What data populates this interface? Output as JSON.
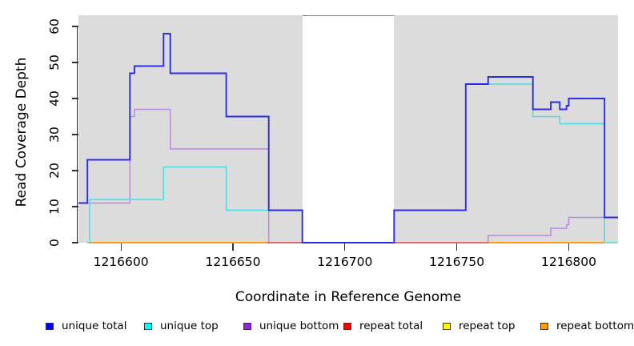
{
  "figure": {
    "x_axis": {
      "title": "Coordinate in Reference Genome",
      "tick_labels": [
        "1216600",
        "1216650",
        "1216700",
        "1216750",
        "1216800"
      ],
      "tick_values": [
        1216600,
        1216650,
        1216700,
        1216750,
        1216800
      ]
    },
    "y_axis": {
      "title": "Read Coverage Depth",
      "tick_labels": [
        "0",
        "10",
        "20",
        "30",
        "40",
        "50",
        "60"
      ],
      "tick_values": [
        0,
        10,
        20,
        30,
        40,
        50,
        60
      ]
    },
    "legend": [
      {
        "label": "unique total",
        "color": "#0000ff"
      },
      {
        "label": "unique top",
        "color": "#00ffff"
      },
      {
        "label": "unique bottom",
        "color": "#9327d8"
      },
      {
        "label": "repeat total",
        "color": "#ff0000"
      },
      {
        "label": "repeat top",
        "color": "#ffff00"
      },
      {
        "label": "repeat bottom",
        "color": "#ffa200"
      }
    ]
  },
  "chart_data": {
    "type": "line",
    "subtype": "step-coverage",
    "title": "",
    "xlabel": "Coordinate in Reference Genome",
    "ylabel": "Read Coverage Depth",
    "xlim": [
      1216581,
      1216822
    ],
    "ylim": [
      0,
      63.1
    ],
    "grid": false,
    "legend_position": "bottom",
    "background": {
      "panel_color": "#dcdcdc",
      "masked_region_x": [
        1216681,
        1216722
      ],
      "masked_region_color": "#ffffff",
      "masked_region_top_border_color": "#8c8c8c"
    },
    "series": [
      {
        "name": "repeat top",
        "line_color": "#ffe000",
        "line_width": 1.5,
        "segments": [
          {
            "steps": [
              [
                1216585,
                0
              ]
            ],
            "end": 1216822
          }
        ]
      },
      {
        "name": "unique bottom",
        "line_color": "#b88ae2",
        "line_width": 1.5,
        "segments": [
          {
            "steps": [
              [
                1216581,
                11
              ],
              [
                1216604,
                35
              ],
              [
                1216606,
                37
              ],
              [
                1216622,
                26
              ],
              [
                1216666,
                0
              ],
              [
                1216764,
                2
              ],
              [
                1216792,
                4
              ],
              [
                1216799,
                5
              ],
              [
                1216800,
                7
              ]
            ],
            "end": 1216822
          }
        ]
      },
      {
        "name": "repeat total",
        "line_color": "#e0505e",
        "line_width": 1.5,
        "segments": [
          {
            "steps": [
              [
                1216665,
                0
              ]
            ],
            "end": 1216764
          }
        ]
      },
      {
        "name": "repeat bottom",
        "line_color": "#ff9008",
        "line_width": 1.8,
        "segments": [
          {
            "steps": [
              [
                1216585,
                0
              ]
            ],
            "end": 1216665
          },
          {
            "steps": [
              [
                1216764,
                0
              ]
            ],
            "end": 1216816
          }
        ]
      },
      {
        "name": "unique top",
        "line_color": "#4adde6",
        "line_width": 1.5,
        "segments": [
          {
            "steps": [
              [
                1216585,
                0
              ],
              [
                1216586,
                12
              ],
              [
                1216619,
                21
              ],
              [
                1216647,
                9
              ],
              [
                1216681,
                0
              ],
              [
                1216722,
                9
              ],
              [
                1216754,
                44
              ],
              [
                1216784,
                35
              ],
              [
                1216796,
                33
              ],
              [
                1216816,
                0
              ]
            ],
            "end": 1216822
          }
        ]
      },
      {
        "name": "unique total",
        "line_color": "#2b2bea",
        "line_width": 1.9,
        "segments": [
          {
            "steps": [
              [
                1216581,
                11
              ],
              [
                1216585,
                23
              ],
              [
                1216604,
                47
              ],
              [
                1216606,
                49
              ],
              [
                1216619,
                58
              ],
              [
                1216622,
                47
              ],
              [
                1216647,
                35
              ],
              [
                1216666,
                9
              ],
              [
                1216681,
                0
              ],
              [
                1216722,
                9
              ],
              [
                1216754,
                44
              ],
              [
                1216764,
                46
              ],
              [
                1216784,
                37
              ],
              [
                1216792,
                39
              ],
              [
                1216796,
                37
              ],
              [
                1216799,
                38
              ],
              [
                1216800,
                40
              ],
              [
                1216816,
                7
              ]
            ],
            "end": 1216822
          }
        ]
      }
    ]
  }
}
